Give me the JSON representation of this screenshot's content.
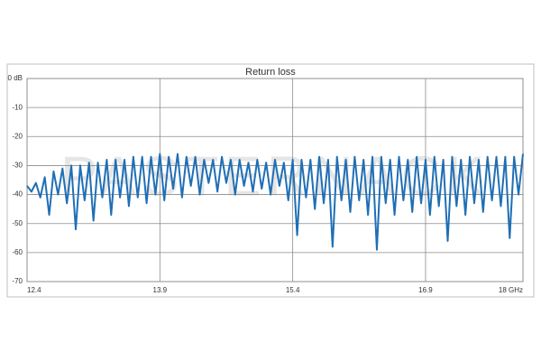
{
  "chart_data": {
    "type": "line",
    "title": "Return loss",
    "watermark": "PASTERNACK",
    "x": [
      12.4,
      12.45,
      12.5,
      12.55,
      12.6,
      12.65,
      12.7,
      12.75,
      12.8,
      12.85,
      12.9,
      12.95,
      13.0,
      13.05,
      13.1,
      13.15,
      13.2,
      13.25,
      13.3,
      13.35,
      13.4,
      13.45,
      13.5,
      13.55,
      13.6,
      13.65,
      13.7,
      13.75,
      13.8,
      13.85,
      13.9,
      13.95,
      14.0,
      14.05,
      14.1,
      14.15,
      14.2,
      14.25,
      14.3,
      14.35,
      14.4,
      14.45,
      14.5,
      14.55,
      14.6,
      14.65,
      14.7,
      14.75,
      14.8,
      14.85,
      14.9,
      14.95,
      15.0,
      15.05,
      15.1,
      15.15,
      15.2,
      15.25,
      15.3,
      15.35,
      15.4,
      15.45,
      15.5,
      15.55,
      15.6,
      15.65,
      15.7,
      15.75,
      15.8,
      15.85,
      15.9,
      15.95,
      16.0,
      16.05,
      16.1,
      16.15,
      16.2,
      16.25,
      16.3,
      16.35,
      16.4,
      16.45,
      16.5,
      16.55,
      16.6,
      16.65,
      16.7,
      16.75,
      16.8,
      16.85,
      16.9,
      16.95,
      17.0,
      17.05,
      17.1,
      17.15,
      17.2,
      17.25,
      17.3,
      17.35,
      17.4,
      17.45,
      17.5,
      17.55,
      17.6,
      17.65,
      17.7,
      17.75,
      17.8,
      17.85,
      17.9,
      17.95,
      18.0
    ],
    "series": [
      {
        "name": "Return loss",
        "color": "#1f6fb5",
        "values": [
          -37,
          -39,
          -36,
          -41,
          -34,
          -47,
          -32,
          -40,
          -31,
          -43,
          -30,
          -52,
          -30,
          -42,
          -29,
          -49,
          -29,
          -41,
          -28,
          -47,
          -28,
          -41,
          -28,
          -44,
          -27,
          -41,
          -27,
          -43,
          -27,
          -40,
          -26,
          -42,
          -27,
          -38,
          -26,
          -41,
          -27,
          -37,
          -27,
          -40,
          -28,
          -36,
          -28,
          -39,
          -27,
          -36,
          -28,
          -40,
          -28,
          -37,
          -29,
          -39,
          -28,
          -38,
          -29,
          -40,
          -28,
          -37,
          -29,
          -42,
          -28,
          -54,
          -28,
          -41,
          -28,
          -45,
          -27,
          -43,
          -28,
          -58,
          -27,
          -42,
          -28,
          -46,
          -27,
          -42,
          -28,
          -47,
          -27,
          -59,
          -27,
          -43,
          -28,
          -47,
          -27,
          -42,
          -28,
          -46,
          -27,
          -43,
          -28,
          -47,
          -27,
          -44,
          -28,
          -56,
          -27,
          -44,
          -28,
          -47,
          -27,
          -43,
          -28,
          -46,
          -27,
          -42,
          -27,
          -44,
          -27,
          -55,
          -27,
          -40,
          -26
        ]
      }
    ],
    "xlim": [
      12.4,
      18
    ],
    "xticks": [
      12.4,
      13.9,
      15.4,
      16.9,
      {
        "value": 18,
        "label": "18 GHz"
      }
    ],
    "ylim": [
      -70,
      0
    ],
    "yticks": [
      {
        "value": 0,
        "label": "0 dB"
      },
      -10,
      -20,
      -30,
      -40,
      -50,
      -60,
      -70
    ],
    "grid": true
  }
}
